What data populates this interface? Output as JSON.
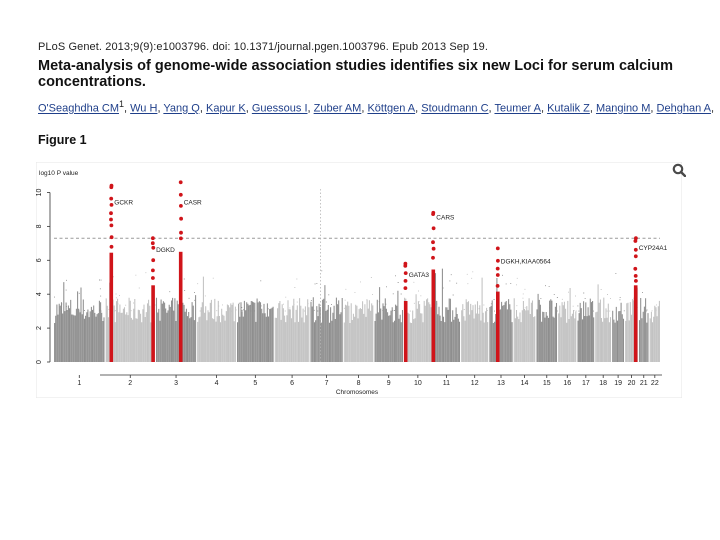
{
  "header": {
    "citation": "PLoS Genet. 2013;9(9):e1003796. doi: 10.1371/journal.pgen.1003796. Epub 2013 Sep 19.",
    "title": "Meta-analysis of genome-wide association studies identifies six new Loci for serum calcium concentrations.",
    "authors": [
      "O'Seaghdha CM",
      "Wu H",
      "Yang Q",
      "Kapur K",
      "Guessous I",
      "Zuber AM",
      "Köttgen A",
      "Stoudmann C",
      "Teumer A",
      "Kutalik Z",
      "Mangino M",
      "Dehghan A"
    ],
    "first_author_affil": "1",
    "authors_trailing": ","
  },
  "figure": {
    "label": "Figure 1",
    "zoom_icon": "magnifier-icon"
  },
  "chart_data": {
    "type": "scatter",
    "subtype": "manhattan",
    "ylabel": "log10 P value",
    "xlabel": "Chromosomes",
    "ylim": [
      0,
      10.5
    ],
    "yticks": [
      0,
      2,
      4,
      6,
      8,
      10
    ],
    "threshold": 7.3,
    "chromosomes": [
      "1",
      "2",
      "3",
      "4",
      "5",
      "6",
      "7",
      "8",
      "9",
      "10",
      "11",
      "12",
      "13",
      "14",
      "15",
      "16",
      "17",
      "18",
      "19",
      "20",
      "21",
      "22"
    ],
    "chromosome_sizes": [
      249,
      243,
      198,
      191,
      181,
      171,
      159,
      146,
      141,
      136,
      135,
      134,
      115,
      107,
      102,
      90,
      83,
      78,
      59,
      63,
      48,
      51
    ],
    "xtick_labels": [
      "1",
      "2",
      "3",
      "4",
      "5",
      "6",
      "7",
      "8",
      "9",
      "10",
      "11",
      "12",
      "13",
      "14",
      "15",
      "16",
      "17",
      "18",
      "19",
      "20",
      "21",
      "22"
    ],
    "hits": [
      {
        "gene": "GCKR",
        "chr": 2,
        "pos": 28,
        "peak": 10.4,
        "label_y": 9.3
      },
      {
        "gene": "DGKD",
        "chr": 2,
        "pos": 234,
        "peak": 7.3,
        "label_y": 6.5
      },
      {
        "gene": "CASR",
        "chr": 3,
        "pos": 122,
        "peak": 10.6,
        "label_y": 9.3
      },
      {
        "gene": "GATA3",
        "chr": 10,
        "pos": 8,
        "peak": 5.8,
        "label_y": 5.0
      },
      {
        "gene": "CARS",
        "chr": 11,
        "pos": 3,
        "peak": 8.8,
        "label_y": 8.4
      },
      {
        "gene": "DGKH,KIAA0564",
        "chr": 13,
        "pos": 42,
        "peak": 6.7,
        "label_y": 5.8
      },
      {
        "gene": "CYP24A1",
        "chr": 20,
        "pos": 52,
        "peak": 7.3,
        "label_y": 6.6
      }
    ],
    "grid": false,
    "colors": {
      "odd_chr": "#8e8e8e",
      "even_chr": "#c2c2c2",
      "hit": "#d0141a",
      "threshold": "#9a9a9a"
    }
  }
}
